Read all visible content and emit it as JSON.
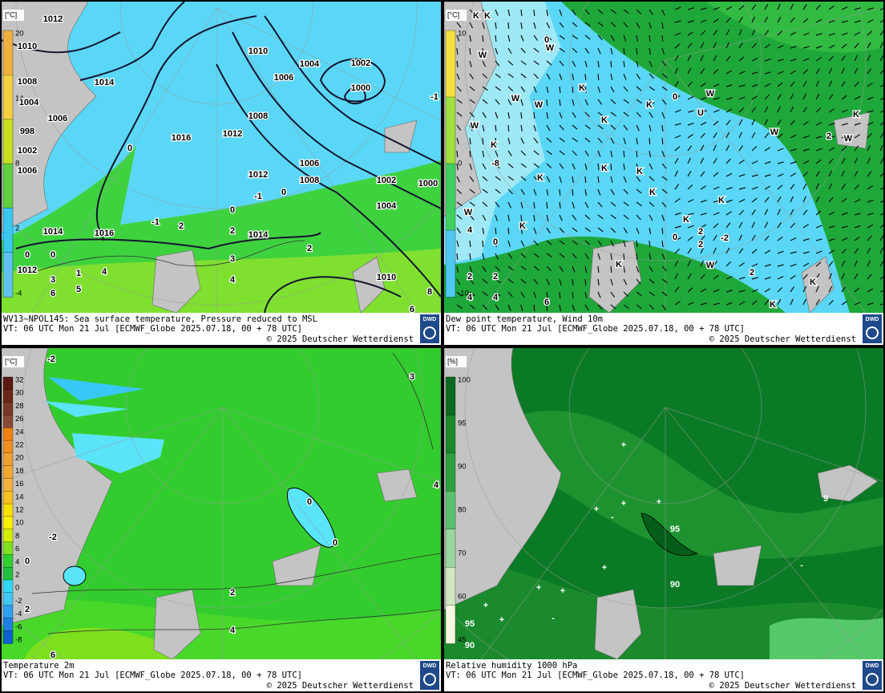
{
  "panels": [
    {
      "title": "WV13~NPOL145: Sea surface temperature,  Pressure reduced to MSL",
      "valid_time": "VT: 06 UTC Mon  21 Jul [ECMWF_Globe 2025.07.18, 00 + 78 UTC]",
      "copyright": "© 2025 Deutscher Wetterdienst",
      "logo": "DWD",
      "unit": "[°C]",
      "scale": [
        20,
        14,
        8,
        2,
        -4
      ],
      "map_labels": [
        1012,
        1010,
        1008,
        1004,
        1006,
        998,
        1002,
        1006,
        1014,
        1016,
        1010,
        1004,
        1002,
        1000,
        1006,
        1008,
        1012,
        1012,
        1006,
        1008,
        1002,
        1004,
        1000,
        1014,
        1016,
        1014,
        1012,
        1010,
        0,
        -1,
        0,
        0,
        2,
        -1,
        2,
        2,
        3,
        4,
        4,
        3,
        1,
        5,
        6,
        0,
        0,
        6,
        8,
        -1
      ]
    },
    {
      "title": "Dew point temperature, Wind 10m",
      "valid_time": "VT: 06 UTC Mon  21 Jul [ECMWF_Globe 2025.07.18, 00 + 78 UTC]",
      "copyright": "© 2025 Deutscher Wetterdienst",
      "logo": "DWD",
      "unit": "[°C]",
      "scale": [
        10,
        0,
        -10
      ],
      "map_labels": [
        "K",
        "K",
        "0",
        "W",
        "W",
        "K",
        "K",
        "0",
        "W",
        "U",
        "K",
        "W",
        "W",
        "W",
        "W",
        "K",
        "W",
        "2",
        "K",
        "K",
        "K",
        "K",
        "K",
        "K",
        "K",
        "K",
        "W",
        "0",
        "2",
        "2",
        "-2",
        "K",
        "W",
        "2",
        "K",
        "K",
        "2",
        "2",
        "4",
        "4",
        "6",
        "0",
        "4",
        "-8"
      ]
    },
    {
      "title": "Temperature 2m",
      "valid_time": "VT: 06 UTC Mon  21 Jul [ECMWF_Globe 2025.07.18, 00 + 78 UTC]",
      "copyright": "© 2025 Deutscher Wetterdienst",
      "logo": "DWD",
      "unit": "[°C]",
      "scale": [
        32,
        30,
        28,
        26,
        24,
        22,
        20,
        18,
        16,
        14,
        12,
        10,
        8,
        6,
        4,
        2,
        0,
        -2,
        -4,
        -6,
        -8
      ],
      "map_labels": [
        -2,
        0,
        0,
        2,
        4,
        -2,
        0,
        2,
        6,
        3,
        4
      ]
    },
    {
      "title": "Relative humidity 1000 hPa",
      "valid_time": "VT: 06 UTC Mon  21 Jul [ECMWF_Globe 2025.07.18, 00 + 78 UTC]",
      "copyright": "© 2025 Deutscher Wetterdienst",
      "logo": "DWD",
      "unit": "[%]",
      "scale": [
        100,
        95,
        90,
        80,
        70,
        60,
        45
      ],
      "map_labels": [
        95,
        90,
        95,
        90,
        9,
        "+",
        "+",
        "+",
        "+",
        "+",
        "+",
        "+",
        "+",
        "+",
        "-",
        "-",
        "-"
      ]
    }
  ]
}
